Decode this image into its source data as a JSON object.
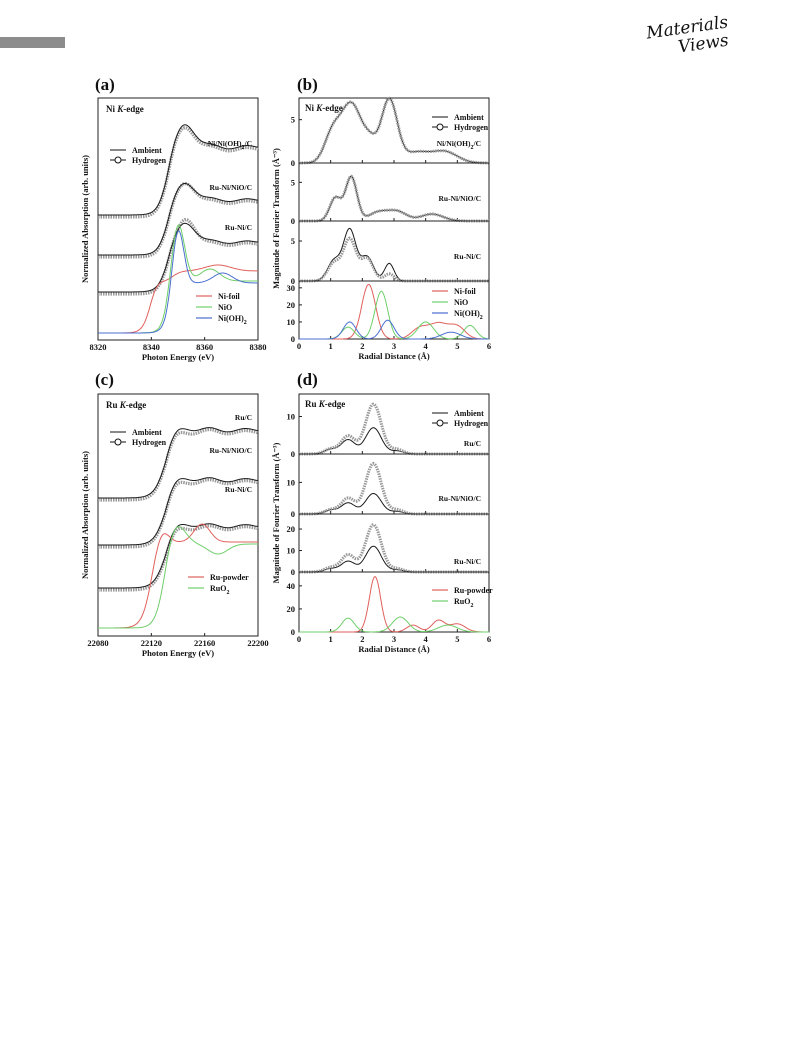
{
  "header": {
    "logo_line1": "Materials",
    "logo_line2": "Views"
  },
  "chart_data": [
    {
      "panel": "(a)",
      "type": "line",
      "edge_label": "Ni K-edge",
      "xlabel": "Photon Energy (eV)",
      "ylabel": "Normalized Absorption (arb. units)",
      "xlim": [
        8320,
        8380
      ],
      "xticks": [
        8320,
        8340,
        8360,
        8380
      ],
      "y_scale": "offset stacked",
      "legend_top": [
        "Ambient",
        "Hydrogen"
      ],
      "sample_labels": [
        "Ni/Ni(OH)2/C",
        "Ru-Ni/NiO/C",
        "Ru-Ni/C"
      ],
      "references": [
        {
          "name": "Ni-foil",
          "color": "#e0605c"
        },
        {
          "name": "NiO",
          "color": "#6fcf6a"
        },
        {
          "name": "Ni(OH)2",
          "color": "#4a6fd0"
        }
      ]
    },
    {
      "panel": "(b)",
      "type": "line",
      "edge_label": "Ni K-edge",
      "xlabel": "Radial Distance (Å)",
      "ylabel": "Magnitude of Fourier Transform (Å⁻³)",
      "xlim": [
        0,
        6
      ],
      "xticks": [
        0,
        1,
        2,
        3,
        4,
        5,
        6
      ],
      "subplots": [
        {
          "label": "Ni/Ni(OH)2/C",
          "yticks": [
            0,
            5
          ]
        },
        {
          "label": "Ru-Ni/NiO/C",
          "yticks": [
            0,
            5
          ]
        },
        {
          "label": "Ru-Ni/C",
          "yticks": [
            0,
            5
          ]
        },
        {
          "label": "",
          "yticks": [
            0,
            10,
            20,
            30
          ]
        }
      ],
      "legend_top": [
        "Ambient",
        "Hydrogen"
      ],
      "references": [
        {
          "name": "Ni-foil",
          "color": "#e0605c"
        },
        {
          "name": "NiO",
          "color": "#6fcf6a"
        },
        {
          "name": "Ni(OH)2",
          "color": "#4a6fd0"
        }
      ]
    },
    {
      "panel": "(c)",
      "type": "line",
      "edge_label": "Ru K-edge",
      "xlabel": "Photon Energy (eV)",
      "ylabel": "Normalized Absorption (arb. units)",
      "xlim": [
        22080,
        22200
      ],
      "xticks": [
        22080,
        22120,
        22160,
        22200
      ],
      "y_scale": "offset stacked",
      "legend_top": [
        "Ambient",
        "Hydrogen"
      ],
      "sample_labels": [
        "Ru/C",
        "Ru-Ni/NiO/C",
        "Ru-Ni/C"
      ],
      "references": [
        {
          "name": "Ru-powder",
          "color": "#e0605c"
        },
        {
          "name": "RuO2",
          "color": "#6fcf6a"
        }
      ]
    },
    {
      "panel": "(d)",
      "type": "line",
      "edge_label": "Ru K-edge",
      "xlabel": "Radial Distance (Å)",
      "ylabel": "Magnitude of Fourier Transform (Å⁻³)",
      "xlim": [
        0,
        6
      ],
      "xticks": [
        0,
        1,
        2,
        3,
        4,
        5,
        6
      ],
      "subplots": [
        {
          "label": "Ru/C",
          "yticks": [
            0,
            10
          ]
        },
        {
          "label": "Ru-Ni/NiO/C",
          "yticks": [
            0,
            10
          ]
        },
        {
          "label": "Ru-Ni/C",
          "yticks": [
            0,
            10,
            20
          ]
        },
        {
          "label": "",
          "yticks": [
            0,
            20,
            40
          ]
        }
      ],
      "legend_top": [
        "Ambient",
        "Hydrogen"
      ],
      "references": [
        {
          "name": "Ru-powder",
          "color": "#e0605c"
        },
        {
          "name": "RuO2",
          "color": "#6fcf6a"
        }
      ]
    }
  ]
}
